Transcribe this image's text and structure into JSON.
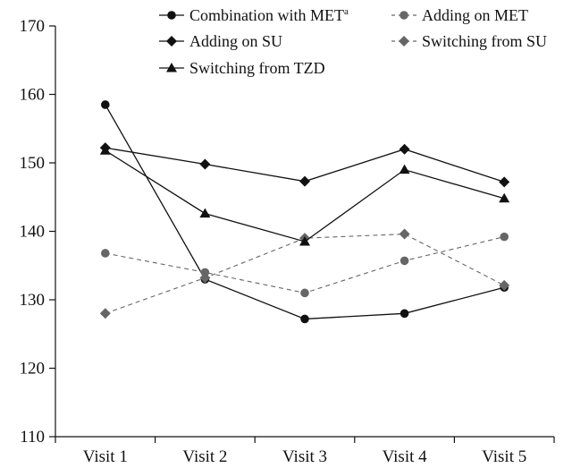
{
  "chart_data": {
    "type": "line",
    "categories": [
      "Visit 1",
      "Visit 2",
      "Visit 3",
      "Visit 4",
      "Visit 5"
    ],
    "ylim": [
      110,
      170
    ],
    "yticks": [
      110,
      120,
      130,
      140,
      150,
      160,
      170
    ],
    "grid": false,
    "legend_position": "top",
    "series": [
      {
        "name": "Combination with MET",
        "name_sup": "a",
        "marker": "circle",
        "color": "#111111",
        "dashed": false,
        "values": [
          158.5,
          133,
          127.2,
          128,
          131.8
        ]
      },
      {
        "name": "Adding on MET",
        "marker": "circle",
        "color": "#666666",
        "dashed": true,
        "values": [
          136.8,
          134,
          131,
          135.7,
          139.2
        ]
      },
      {
        "name": "Adding on SU",
        "marker": "diamond",
        "color": "#111111",
        "dashed": false,
        "values": [
          152.2,
          149.8,
          147.3,
          152,
          147.2
        ]
      },
      {
        "name": "Switching from SU",
        "marker": "diamond",
        "color": "#666666",
        "dashed": true,
        "values": [
          128,
          133.2,
          139,
          139.6,
          132.1
        ]
      },
      {
        "name": "Switching from TZD",
        "marker": "triangle",
        "color": "#111111",
        "dashed": false,
        "values": [
          151.8,
          142.6,
          138.5,
          149,
          144.8
        ]
      }
    ]
  }
}
